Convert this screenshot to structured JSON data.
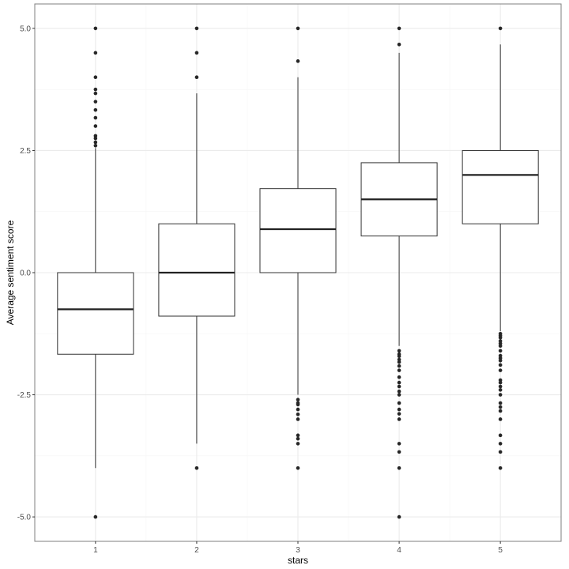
{
  "chart_data": {
    "type": "box",
    "title": "",
    "xlabel": "stars",
    "ylabel": "Average sentiment score",
    "categories": [
      "1",
      "2",
      "3",
      "4",
      "5"
    ],
    "ylim": [
      -5.5,
      5.5
    ],
    "yticks": [
      -5.0,
      -2.5,
      0.0,
      2.5,
      5.0
    ],
    "ytick_labels": [
      "-5.0",
      "-2.5",
      "0.0",
      "2.5",
      "5.0"
    ],
    "grid": true,
    "legend": "none",
    "colors": {
      "panel_border": "#7f7f7f",
      "grid_major": "#ebebeb",
      "grid_minor": "#f5f5f5",
      "box_line": "#333333",
      "median_line": "#222222",
      "outlier_fill": "#262626"
    },
    "boxes": [
      {
        "category": "1",
        "q1": -1.67,
        "median": -0.75,
        "q3": 0.0,
        "whisker_low": -4.0,
        "whisker_high": 2.55,
        "outliers": [
          -5.0,
          2.6,
          2.67,
          2.75,
          2.8,
          3.0,
          3.17,
          3.33,
          3.5,
          3.67,
          3.75,
          4.0,
          4.5,
          5.0
        ]
      },
      {
        "category": "2",
        "q1": -0.89,
        "median": 0.0,
        "q3": 1.0,
        "whisker_low": -3.5,
        "whisker_high": 3.67,
        "outliers": [
          -4.0,
          4.0,
          4.5,
          5.0
        ]
      },
      {
        "category": "3",
        "q1": 0.0,
        "median": 0.89,
        "q3": 1.72,
        "whisker_low": -2.5,
        "whisker_high": 4.0,
        "outliers": [
          -4.0,
          -3.5,
          -3.4,
          -3.33,
          -3.0,
          -2.9,
          -2.8,
          -2.7,
          -2.67,
          -2.6,
          4.33,
          5.0
        ]
      },
      {
        "category": "4",
        "q1": 0.75,
        "median": 1.5,
        "q3": 2.25,
        "whisker_low": -1.5,
        "whisker_high": 4.5,
        "outliers": [
          -5.0,
          -4.0,
          -3.67,
          -3.5,
          -3.0,
          -2.89,
          -2.8,
          -2.67,
          -2.5,
          -2.43,
          -2.33,
          -2.25,
          -2.14,
          -2.0,
          -1.91,
          -1.83,
          -1.78,
          -1.71,
          -1.67,
          -1.6,
          4.67,
          5.0
        ]
      },
      {
        "category": "5",
        "q1": 1.0,
        "median": 2.0,
        "q3": 2.5,
        "whisker_low": -1.2,
        "whisker_high": 4.67,
        "outliers": [
          -4.0,
          -3.67,
          -3.5,
          -3.33,
          -3.0,
          -2.83,
          -2.75,
          -2.67,
          -2.5,
          -2.4,
          -2.33,
          -2.25,
          -2.2,
          -2.0,
          -1.89,
          -1.8,
          -1.75,
          -1.7,
          -1.6,
          -1.5,
          -1.45,
          -1.4,
          -1.33,
          -1.29,
          -1.25,
          5.0
        ]
      }
    ]
  }
}
